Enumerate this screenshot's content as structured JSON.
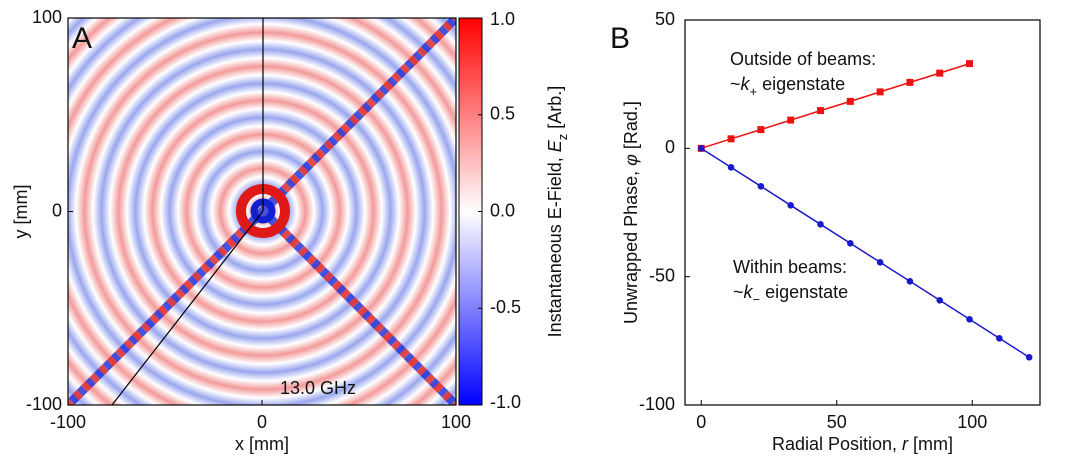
{
  "chart_data": [
    {
      "type": "image",
      "panel_label": "A",
      "annotation": "13.0 GHz",
      "x_label": "x [mm]",
      "y_label": "y [mm]",
      "xlim": [
        -100,
        100
      ],
      "xticks": [
        -100,
        0,
        100
      ],
      "ylim": [
        -100,
        100
      ],
      "yticks": [
        -100,
        0,
        100
      ],
      "colorbar": {
        "label_parts": [
          "Instantaneous E-Field, ",
          "E",
          "z",
          " [Arb.]"
        ],
        "lim": [
          -1,
          1
        ],
        "ticks": [
          {
            "value": -1,
            "label": "-1.0"
          },
          -0.5,
          {
            "value": 0,
            "label": "0.0"
          },
          0.5,
          {
            "value": 1,
            "label": "1.0"
          }
        ],
        "colors": [
          "#0000ff",
          "#ffffff",
          "#ff0000"
        ]
      }
    },
    {
      "type": "line",
      "panel_label": "B",
      "x_label_parts": [
        "Radial Position, ",
        "r",
        " [mm]"
      ],
      "y_label_parts": [
        "Unwrapped Phase, ",
        "φ",
        " [Rad.]"
      ],
      "xlim": [
        -6,
        125
      ],
      "xticks": [
        0,
        50,
        100
      ],
      "ylim": [
        -100,
        50
      ],
      "yticks": [
        -100,
        -50,
        0,
        50
      ],
      "series": [
        {
          "color": "#ee1111",
          "marker": "square",
          "label": {
            "title": "Outside of beams:",
            "parts": [
              "~",
              "k",
              "+",
              " eigenstate"
            ]
          },
          "x": [
            0,
            11,
            22,
            33,
            44,
            55,
            66,
            77,
            88,
            99
          ],
          "values": [
            0,
            3.7,
            7.3,
            11,
            14.7,
            18.3,
            22,
            25.7,
            29.3,
            33
          ]
        },
        {
          "color": "#1a1acc",
          "marker": "circle",
          "label": {
            "title": "Within beams:",
            "parts": [
              "~",
              "k",
              "−",
              " eigenstate"
            ]
          },
          "x": [
            0,
            11,
            22,
            33,
            44,
            55,
            66,
            77,
            88,
            99,
            110,
            121
          ],
          "values": [
            0,
            -7.4,
            -14.8,
            -22.2,
            -29.6,
            -37,
            -44.4,
            -51.8,
            -59.2,
            -66.6,
            -74,
            -81.4
          ]
        }
      ]
    }
  ]
}
